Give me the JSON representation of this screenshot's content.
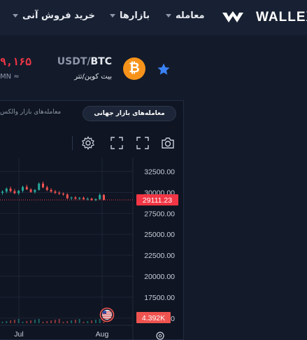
{
  "header": {
    "brand": "WALLEX",
    "nav": [
      {
        "label": "معامله"
      },
      {
        "label": "بازارها"
      },
      {
        "label": "خرید فروش آنی"
      }
    ]
  },
  "ticker": {
    "base": "BTC",
    "quote": "USDT",
    "separator": "/",
    "name_fa": "بیت کوین/تتر",
    "coin_symbol": "₿",
    "last_price": "۹,۱۶۵",
    "volume_hint": "MN ≈"
  },
  "market_tabs": {
    "active": "معامله‌های بازار جهانی",
    "inactive": "معامله‌های بازار والکس"
  },
  "toolbar": {
    "icons": [
      "camera-icon",
      "fullscreen-icon",
      "expand-icon",
      "gear-icon"
    ]
  },
  "chart_data": {
    "type": "line",
    "style": "candlestick",
    "y_ticks": [
      "32500.00",
      "30000.00",
      "27500.00",
      "25000.00",
      "22500.00",
      "20000.00",
      "17500.00",
      "15000.00"
    ],
    "ylim": [
      14400,
      33800
    ],
    "x_ticks": [
      "Jul",
      "Aug"
    ],
    "last_price_label": "29111.23",
    "last_price": 29111.23,
    "volume_label": "4.392K",
    "colors": {
      "up": "#26a69a",
      "down": "#ef5350",
      "last": "#f23645"
    },
    "candles": [
      [
        29950,
        30250,
        29700,
        30100
      ],
      [
        30100,
        30600,
        29900,
        30450
      ],
      [
        30450,
        30700,
        30000,
        30150
      ],
      [
        30150,
        30400,
        29800,
        29900
      ],
      [
        29900,
        30300,
        29700,
        30200
      ],
      [
        30200,
        30800,
        30000,
        30650
      ],
      [
        30650,
        30900,
        30300,
        30350
      ],
      [
        30350,
        30500,
        29950,
        30050
      ],
      [
        30050,
        30400,
        29850,
        30300
      ],
      [
        30300,
        31200,
        30200,
        31050
      ],
      [
        31050,
        31300,
        30500,
        30600
      ],
      [
        30600,
        30800,
        30150,
        30300
      ],
      [
        30300,
        30500,
        29950,
        30100
      ],
      [
        30100,
        30300,
        29800,
        29950
      ],
      [
        29950,
        30150,
        29700,
        29850
      ],
      [
        29850,
        30000,
        29600,
        29750
      ],
      [
        29750,
        29900,
        29200,
        29300
      ],
      [
        29300,
        29500,
        29100,
        29400
      ],
      [
        29400,
        29550,
        29150,
        29250
      ],
      [
        29250,
        29450,
        29100,
        29350
      ],
      [
        29350,
        29500,
        29100,
        29200
      ],
      [
        29200,
        29400,
        29050,
        29250
      ],
      [
        29250,
        29350,
        29000,
        29100
      ],
      [
        29100,
        29300,
        28950,
        29200
      ],
      [
        29200,
        29900,
        29100,
        29700
      ],
      [
        29700,
        29800,
        29050,
        29111
      ]
    ]
  }
}
